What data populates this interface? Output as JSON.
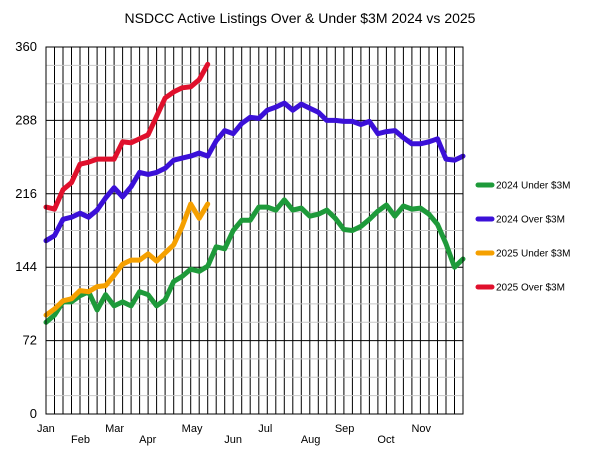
{
  "chart_data": {
    "type": "line",
    "title": "NSDCC Active Listings Over & Under $3M 2024 vs 2025",
    "xlabel": "",
    "ylabel": "",
    "ylim": [
      0,
      360
    ],
    "yticks": [
      0,
      72,
      144,
      216,
      288,
      360
    ],
    "x_month_labels": [
      {
        "label": "Jan",
        "week": 0
      },
      {
        "label": "Feb",
        "week": 4
      },
      {
        "label": "Mar",
        "week": 8
      },
      {
        "label": "Apr",
        "week": 12
      },
      {
        "label": "May",
        "week": 17
      },
      {
        "label": "Jun",
        "week": 22
      },
      {
        "label": "Jul",
        "week": 26
      },
      {
        "label": "Aug",
        "week": 31
      },
      {
        "label": "Sep",
        "week": 35
      },
      {
        "label": "Oct",
        "week": 40
      },
      {
        "label": "Nov",
        "week": 44
      }
    ],
    "legend_position": "right",
    "grid": true,
    "series": [
      {
        "name": "2024 Under $3M",
        "color": "#1e9a3a",
        "values": [
          90,
          97,
          110,
          110,
          116,
          120,
          102,
          117,
          106,
          110,
          106,
          120,
          117,
          106,
          112,
          130,
          135,
          142,
          140,
          145,
          164,
          162,
          180,
          190,
          190,
          203,
          203,
          200,
          210,
          200,
          202,
          194,
          196,
          200,
          192,
          181,
          180,
          184,
          191,
          199,
          205,
          194,
          204,
          201,
          202,
          196,
          186,
          167,
          144,
          152
        ]
      },
      {
        "name": "2024 Over $3M",
        "color": "#3b10d8",
        "values": [
          170,
          175,
          191,
          193,
          197,
          193,
          200,
          212,
          222,
          213,
          223,
          237,
          235,
          237,
          241,
          249,
          251,
          253,
          256,
          253,
          268,
          278,
          275,
          285,
          291,
          290,
          298,
          301,
          305,
          298,
          304,
          300,
          296,
          288,
          288,
          287,
          287,
          284,
          287,
          275,
          277,
          278,
          271,
          265,
          265,
          267,
          270,
          250,
          249,
          253
        ]
      },
      {
        "name": "2025 Under $3M",
        "color": "#f5a000",
        "values": [
          97,
          103,
          111,
          113,
          121,
          120,
          125,
          126,
          136,
          147,
          151,
          151,
          157,
          150,
          158,
          166,
          184,
          206,
          192,
          206
        ]
      },
      {
        "name": "2025 Over $3M",
        "color": "#e0102c",
        "values": [
          203,
          201,
          220,
          227,
          245,
          247,
          250,
          250,
          250,
          267,
          266,
          270,
          274,
          292,
          310,
          316,
          320,
          321,
          328,
          343
        ]
      }
    ]
  }
}
